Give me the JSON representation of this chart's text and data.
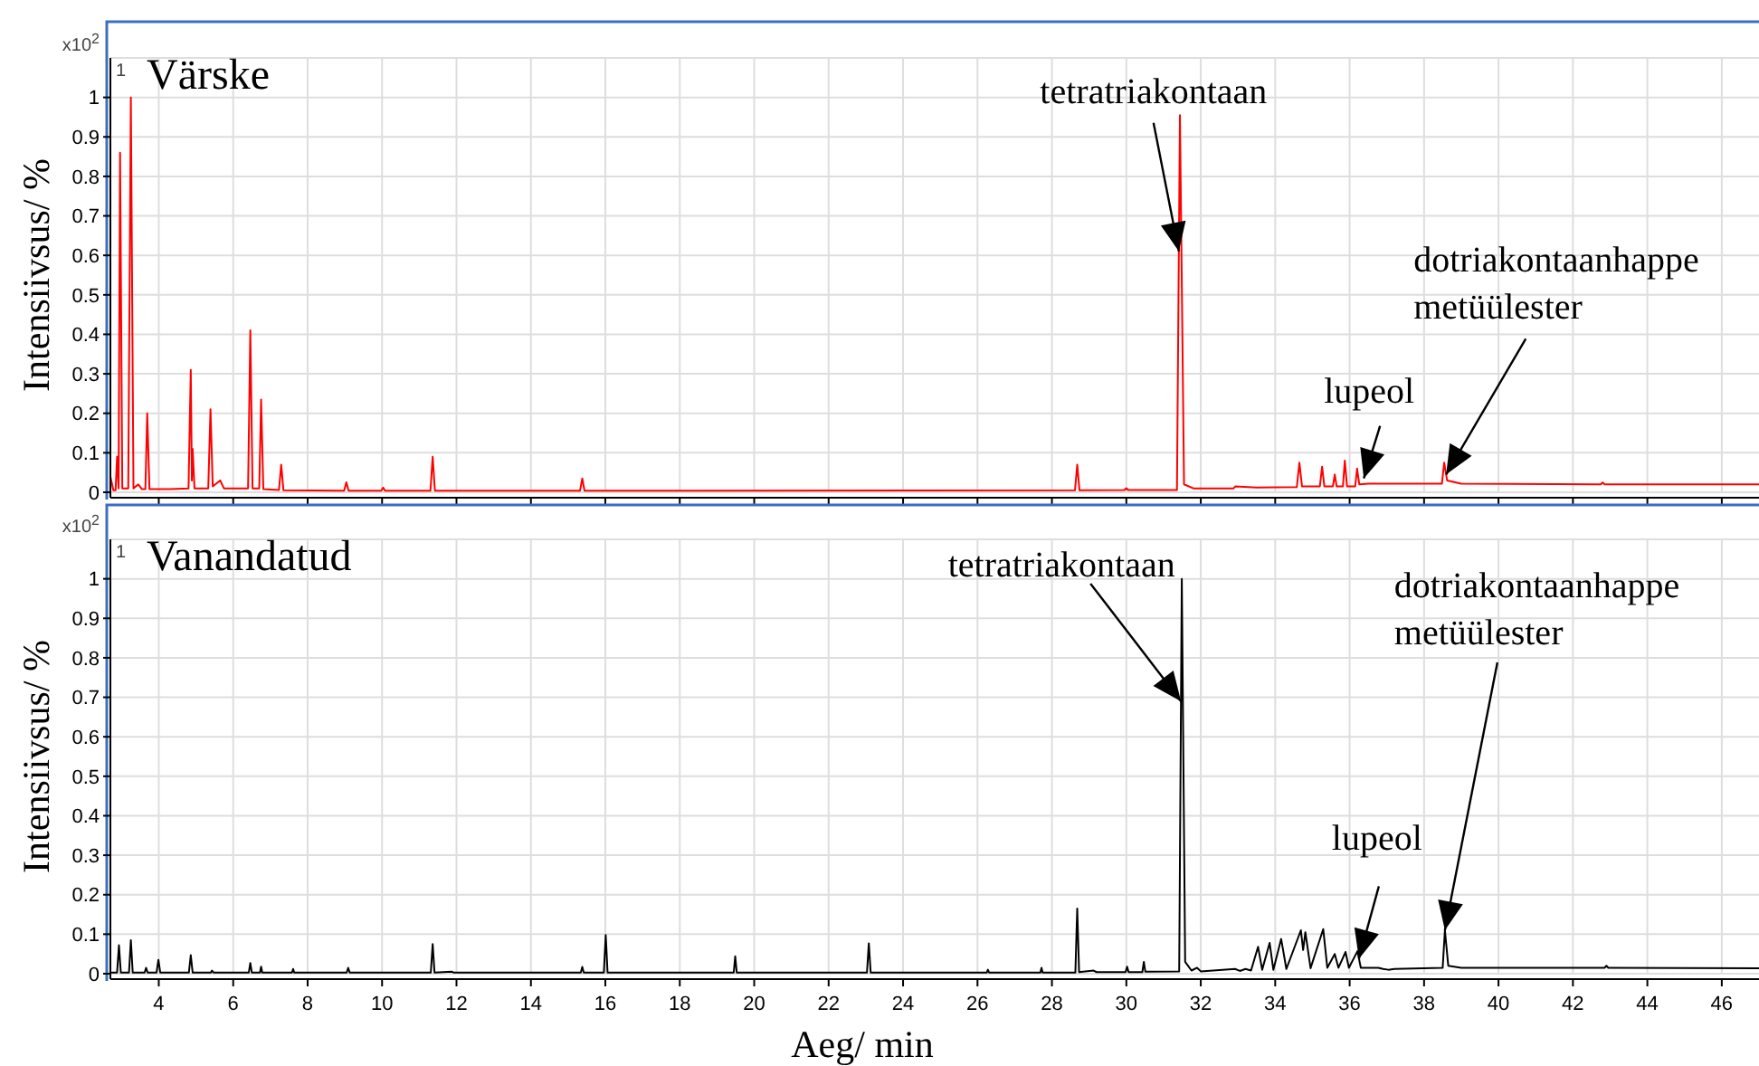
{
  "chart_data": [
    {
      "type": "line",
      "title": "Värske",
      "ylabel": "Intensiivsus/ %",
      "xlim": [
        2.7,
        47
      ],
      "xticks": [
        4,
        6,
        8,
        10,
        12,
        14,
        16,
        18,
        20,
        22,
        24,
        26,
        28,
        30,
        32,
        34,
        36,
        38,
        40,
        42,
        44,
        46
      ],
      "ylim": [
        0,
        1.1
      ],
      "yticks": [
        0,
        0.1,
        0.2,
        0.3,
        0.4,
        0.5,
        0.6,
        0.7,
        0.8,
        0.9,
        1
      ],
      "grid": true,
      "tick_labels": "y",
      "annotations": [
        "x10$^{2}$",
        "1",
        {
          "text": "tetratriakontaan",
          "x": 31.411,
          "y": 0.61
        },
        {
          "text": "lupeol",
          "x": 36.38,
          "y": 0.035
        },
        {
          "text": "dotriakontaanhappe metüülester",
          "x": 38.593,
          "y": 0.045
        }
      ],
      "series": [
        {
          "color": "#ff0000",
          "x": [
            2.7,
            2.78,
            2.84,
            2.88,
            2.92,
            2.96,
            3.02,
            3.18,
            3.25,
            3.32,
            3.45,
            3.55,
            3.64,
            3.69,
            3.75,
            4.3,
            4.8,
            4.86,
            4.89,
            4.91,
            4.96,
            5.33,
            5.39,
            5.45,
            5.65,
            5.75,
            6.4,
            6.46,
            6.52,
            6.7,
            6.75,
            6.81,
            7.23,
            7.29,
            7.35,
            8.98,
            9.04,
            9.1,
            9.98,
            10.03,
            10.08,
            11.3,
            11.36,
            11.42,
            15.32,
            15.38,
            15.44,
            28.62,
            28.68,
            28.74,
            29.95,
            30.0,
            30.05,
            31.36,
            31.44,
            31.55,
            31.8,
            32.88,
            32.93,
            33.5,
            34.58,
            34.65,
            34.72,
            35.2,
            35.26,
            35.32,
            35.55,
            35.6,
            35.65,
            35.82,
            35.87,
            35.93,
            36.15,
            36.2,
            36.26,
            36.5,
            38.48,
            38.54,
            38.62,
            39.0,
            42.75,
            42.8,
            42.85,
            47
          ],
          "values": [
            0.04,
            0.005,
            0.005,
            0.09,
            0.01,
            0.86,
            0.01,
            0.01,
            1.0,
            0.01,
            0.02,
            0.008,
            0.008,
            0.2,
            0.008,
            0.008,
            0.01,
            0.31,
            0.03,
            0.11,
            0.01,
            0.01,
            0.21,
            0.015,
            0.03,
            0.01,
            0.01,
            0.41,
            0.01,
            0.01,
            0.235,
            0.008,
            0.006,
            0.07,
            0.005,
            0.004,
            0.025,
            0.004,
            0.004,
            0.012,
            0.004,
            0.004,
            0.09,
            0.004,
            0.004,
            0.035,
            0.004,
            0.005,
            0.07,
            0.005,
            0.006,
            0.01,
            0.006,
            0.006,
            0.955,
            0.02,
            0.01,
            0.01,
            0.015,
            0.012,
            0.013,
            0.075,
            0.015,
            0.015,
            0.065,
            0.015,
            0.015,
            0.045,
            0.015,
            0.015,
            0.08,
            0.015,
            0.015,
            0.06,
            0.02,
            0.022,
            0.022,
            0.075,
            0.03,
            0.022,
            0.02,
            0.025,
            0.02,
            0.02
          ]
        }
      ]
    },
    {
      "type": "line",
      "title": "Vanandatud",
      "ylabel": "Intensiivsus/ %",
      "xlabel": "Aeg/ min",
      "xlim": [
        2.7,
        47
      ],
      "xticks": [
        4,
        6,
        8,
        10,
        12,
        14,
        16,
        18,
        20,
        22,
        24,
        26,
        28,
        30,
        32,
        34,
        36,
        38,
        40,
        42,
        44,
        46
      ],
      "ylim": [
        0,
        1.1
      ],
      "yticks": [
        0,
        0.1,
        0.2,
        0.3,
        0.4,
        0.5,
        0.6,
        0.7,
        0.8,
        0.9,
        1
      ],
      "grid": true,
      "annotations": [
        "x10$^{2}$",
        "1",
        {
          "text": "tetratriakontaan",
          "x": 31.468,
          "y": 0.69
        },
        {
          "text": "lupeol",
          "x": 36.25,
          "y": 0.038
        },
        {
          "text": "dotriakontaanhappe metüülester",
          "x": 38.56,
          "y": 0.11
        }
      ],
      "series": [
        {
          "color": "#000000",
          "x": [
            2.7,
            2.88,
            2.93,
            2.98,
            3.2,
            3.25,
            3.3,
            3.62,
            3.66,
            3.7,
            3.94,
            3.99,
            4.04,
            4.81,
            4.86,
            4.91,
            5.4,
            5.43,
            5.47,
            6.42,
            6.46,
            6.5,
            6.72,
            6.75,
            6.78,
            7.58,
            7.61,
            7.64,
            9.05,
            9.09,
            9.13,
            11.31,
            11.36,
            11.41,
            11.88,
            11.92,
            15.34,
            15.38,
            15.42,
            15.96,
            16.01,
            16.06,
            19.45,
            19.49,
            19.53,
            23.03,
            23.08,
            23.13,
            26.25,
            26.28,
            26.31,
            27.69,
            27.72,
            27.75,
            28.63,
            28.68,
            28.73,
            29.12,
            29.2,
            29.98,
            30.02,
            30.06,
            30.43,
            30.47,
            30.51,
            31.42,
            31.49,
            31.58,
            31.75,
            31.9,
            32.0,
            32.92,
            33.05,
            33.2,
            33.35,
            33.54,
            33.65,
            33.85,
            33.95,
            34.16,
            34.3,
            34.69,
            34.75,
            34.81,
            34.95,
            35.29,
            35.4,
            35.6,
            35.7,
            35.89,
            35.98,
            36.21,
            36.3,
            36.77,
            36.9,
            37.04,
            37.2,
            38.5,
            38.56,
            38.65,
            39.0,
            42.85,
            42.9,
            42.95,
            47
          ],
          "values": [
            0.003,
            0.003,
            0.072,
            0.003,
            0.003,
            0.085,
            0.003,
            0.003,
            0.015,
            0.003,
            0.003,
            0.035,
            0.003,
            0.003,
            0.047,
            0.003,
            0.003,
            0.008,
            0.003,
            0.003,
            0.027,
            0.003,
            0.003,
            0.018,
            0.003,
            0.003,
            0.012,
            0.003,
            0.003,
            0.015,
            0.003,
            0.003,
            0.075,
            0.003,
            0.005,
            0.003,
            0.003,
            0.017,
            0.003,
            0.003,
            0.098,
            0.003,
            0.003,
            0.044,
            0.003,
            0.003,
            0.077,
            0.003,
            0.003,
            0.01,
            0.003,
            0.003,
            0.015,
            0.003,
            0.003,
            0.165,
            0.004,
            0.008,
            0.004,
            0.004,
            0.018,
            0.004,
            0.004,
            0.03,
            0.005,
            0.006,
            1.0,
            0.03,
            0.008,
            0.015,
            0.006,
            0.012,
            0.007,
            0.012,
            0.008,
            0.068,
            0.01,
            0.078,
            0.01,
            0.088,
            0.012,
            0.11,
            0.06,
            0.105,
            0.014,
            0.113,
            0.015,
            0.05,
            0.015,
            0.055,
            0.015,
            0.057,
            0.015,
            0.015,
            0.012,
            0.01,
            0.012,
            0.015,
            0.11,
            0.02,
            0.015,
            0.015,
            0.02,
            0.015,
            0.014
          ]
        }
      ]
    }
  ]
}
